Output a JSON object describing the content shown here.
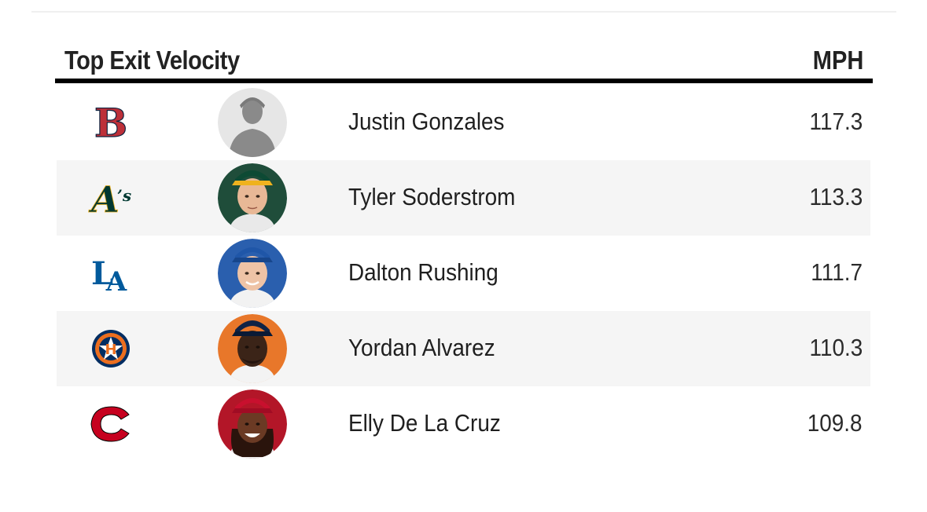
{
  "header": {
    "title": "Top Exit Velocity",
    "unit": "MPH"
  },
  "rows": [
    {
      "name": "Justin Gonzales",
      "mph": "117.3",
      "team_logo_icon": "red-sox-logo-icon",
      "team_color": "#BD3039",
      "headshot_icon": "silhouette-headshot-icon"
    },
    {
      "name": "Tyler Soderstrom",
      "mph": "113.3",
      "team_logo_icon": "athletics-logo-icon",
      "team_color": "#003831",
      "headshot_icon": "player-headshot-icon"
    },
    {
      "name": "Dalton Rushing",
      "mph": "111.7",
      "team_logo_icon": "dodgers-logo-icon",
      "team_color": "#005A9C",
      "headshot_icon": "player-headshot-icon"
    },
    {
      "name": "Yordan Alvarez",
      "mph": "110.3",
      "team_logo_icon": "astros-logo-icon",
      "team_color": "#002D62",
      "headshot_icon": "player-headshot-icon"
    },
    {
      "name": "Elly De La Cruz",
      "mph": "109.8",
      "team_logo_icon": "reds-logo-icon",
      "team_color": "#C6011F",
      "headshot_icon": "player-headshot-icon"
    }
  ]
}
